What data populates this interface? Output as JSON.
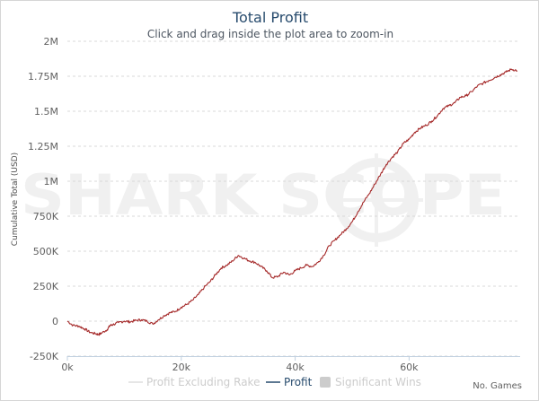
{
  "chart_data": {
    "type": "line",
    "title": "Total Profit",
    "subtitle": "Click and drag inside the plot area to zoom-in",
    "ylabel": "Cumulative Total (USD)",
    "xlabel": "No. Games",
    "watermark": "SHARK SCOPE",
    "x_ticks": [
      {
        "value": 0,
        "label": "0k"
      },
      {
        "value": 20000,
        "label": "20k"
      },
      {
        "value": 40000,
        "label": "40k"
      },
      {
        "value": 60000,
        "label": "60k"
      }
    ],
    "y_ticks": [
      {
        "value": -250000,
        "label": "-250K"
      },
      {
        "value": 0,
        "label": "0"
      },
      {
        "value": 250000,
        "label": "250K"
      },
      {
        "value": 500000,
        "label": "500K"
      },
      {
        "value": 750000,
        "label": "750K"
      },
      {
        "value": 1000000,
        "label": "1M"
      },
      {
        "value": 1250000,
        "label": "1.25M"
      },
      {
        "value": 1500000,
        "label": "1.5M"
      },
      {
        "value": 1750000,
        "label": "1.75M"
      },
      {
        "value": 2000000,
        "label": "2M"
      }
    ],
    "xlim": [
      0,
      79500
    ],
    "ylim": [
      -250000,
      2000000
    ],
    "grid": true,
    "legend_position": "bottom-center",
    "series": [
      {
        "name": "Profit",
        "color": "#a52a2a",
        "x": [
          0,
          1000,
          2000,
          3000,
          4000,
          5000,
          5500,
          6000,
          7000,
          7500,
          8000,
          9000,
          10000,
          11000,
          12000,
          13000,
          14000,
          15000,
          16000,
          17000,
          18000,
          19000,
          20000,
          21000,
          22000,
          23000,
          24000,
          25000,
          26000,
          27000,
          28000,
          29000,
          30000,
          31000,
          32000,
          33000,
          34000,
          35000,
          36000,
          37000,
          38000,
          39000,
          40000,
          41000,
          42000,
          43000,
          44000,
          45000,
          46000,
          47000,
          48000,
          49000,
          50000,
          51000,
          52000,
          53000,
          54000,
          55000,
          56000,
          57000,
          58000,
          59000,
          60000,
          61000,
          62000,
          63000,
          64000,
          65000,
          66000,
          67000,
          68000,
          69000,
          70000,
          71000,
          72000,
          73000,
          74000,
          75000,
          76000,
          77000,
          78000,
          79000
        ],
        "values": [
          0,
          -30000,
          -35000,
          -55000,
          -80000,
          -90000,
          -95000,
          -85000,
          -60000,
          -30000,
          -25000,
          -10000,
          0,
          -5000,
          5000,
          10000,
          0,
          -20000,
          10000,
          40000,
          60000,
          70000,
          100000,
          120000,
          150000,
          190000,
          240000,
          280000,
          330000,
          380000,
          400000,
          430000,
          470000,
          450000,
          430000,
          420000,
          390000,
          360000,
          310000,
          320000,
          350000,
          330000,
          360000,
          380000,
          400000,
          390000,
          420000,
          470000,
          540000,
          580000,
          620000,
          660000,
          710000,
          780000,
          850000,
          910000,
          980000,
          1050000,
          1120000,
          1170000,
          1210000,
          1270000,
          1300000,
          1350000,
          1380000,
          1400000,
          1430000,
          1470000,
          1520000,
          1540000,
          1560000,
          1600000,
          1610000,
          1640000,
          1680000,
          1700000,
          1720000,
          1740000,
          1760000,
          1780000,
          1800000,
          1790000
        ]
      }
    ],
    "legend": [
      {
        "name": "Profit Excluding Rake",
        "color": "#cccccc",
        "symbol": "line"
      },
      {
        "name": "Profit",
        "color": "#274b6d",
        "symbol": "line"
      },
      {
        "name": "Significant Wins",
        "color": "#cccccc",
        "symbol": "box"
      }
    ]
  }
}
